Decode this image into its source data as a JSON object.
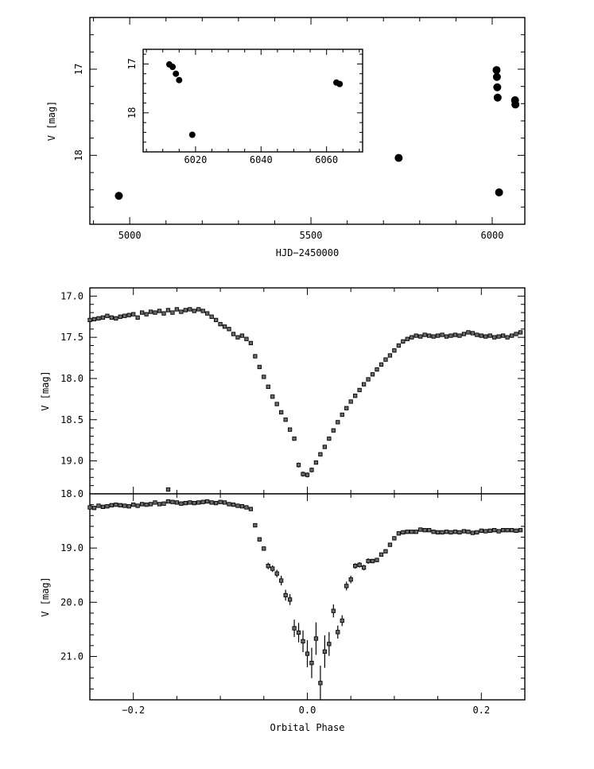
{
  "chart_data": [
    {
      "type": "scatter",
      "id": "top",
      "xlabel": "HJD−2450000",
      "ylabel": "V [mag]",
      "xlim": [
        4890,
        6090
      ],
      "ylim": [
        18.8,
        16.4
      ],
      "xticks": [
        5000,
        5500,
        6000
      ],
      "xminor_step": 100,
      "yticks": [
        17,
        18
      ],
      "yminor_step": 0.2,
      "inverted_y": true,
      "points": [
        {
          "x": 4970,
          "y": 18.47
        },
        {
          "x": 5742,
          "y": 18.03
        },
        {
          "x": 6012,
          "y": 17.01
        },
        {
          "x": 6013,
          "y": 17.09
        },
        {
          "x": 6014,
          "y": 17.21
        },
        {
          "x": 6015,
          "y": 17.33
        },
        {
          "x": 6019,
          "y": 18.43
        },
        {
          "x": 6063,
          "y": 17.36
        },
        {
          "x": 6064,
          "y": 17.41
        }
      ]
    },
    {
      "type": "scatter",
      "id": "inset",
      "xlim": [
        6004,
        6071
      ],
      "ylim": [
        18.8,
        16.7
      ],
      "xticks": [
        6020,
        6040,
        6060
      ],
      "xminor_step": 5,
      "yticks": [
        17,
        18
      ],
      "yminor_step": 0.2,
      "inverted_y": true,
      "points": [
        {
          "x": 6012,
          "y": 17.01
        },
        {
          "x": 6013,
          "y": 17.06
        },
        {
          "x": 6014,
          "y": 17.2
        },
        {
          "x": 6015,
          "y": 17.33
        },
        {
          "x": 6019,
          "y": 18.45
        },
        {
          "x": 6063,
          "y": 17.38
        },
        {
          "x": 6064,
          "y": 17.41
        }
      ]
    },
    {
      "type": "scatter",
      "id": "middle",
      "ylabel": "V [mag]",
      "xlim": [
        -0.25,
        0.25
      ],
      "ylim": [
        19.4,
        16.9
      ],
      "xticks": [
        -0.2,
        0,
        0.2
      ],
      "xminor_step": 0.05,
      "yticks": [
        17.0,
        17.5,
        18.0,
        18.5,
        19.0
      ],
      "yticklabels": [
        "17.0",
        "17.5",
        "18.0",
        "18.5",
        "19.0"
      ],
      "yminor_step": 0.1,
      "inverted_y": true,
      "x": [
        -0.25,
        -0.245,
        -0.24,
        -0.235,
        -0.23,
        -0.225,
        -0.22,
        -0.215,
        -0.21,
        -0.205,
        -0.2,
        -0.195,
        -0.19,
        -0.185,
        -0.18,
        -0.175,
        -0.17,
        -0.165,
        -0.16,
        -0.155,
        -0.15,
        -0.145,
        -0.14,
        -0.135,
        -0.13,
        -0.125,
        -0.12,
        -0.115,
        -0.11,
        -0.105,
        -0.1,
        -0.095,
        -0.09,
        -0.085,
        -0.08,
        -0.075,
        -0.07,
        -0.065,
        -0.06,
        -0.055,
        -0.05,
        -0.045,
        -0.04,
        -0.035,
        -0.03,
        -0.025,
        -0.02,
        -0.015,
        -0.01,
        -0.005,
        0,
        0.005,
        0.01,
        0.015,
        0.02,
        0.025,
        0.03,
        0.035,
        0.04,
        0.045,
        0.05,
        0.055,
        0.06,
        0.065,
        0.07,
        0.075,
        0.08,
        0.085,
        0.09,
        0.095,
        0.1,
        0.105,
        0.11,
        0.115,
        0.12,
        0.125,
        0.13,
        0.135,
        0.14,
        0.145,
        0.15,
        0.155,
        0.16,
        0.165,
        0.17,
        0.175,
        0.18,
        0.185,
        0.19,
        0.195,
        0.2,
        0.205,
        0.21,
        0.215,
        0.22,
        0.225,
        0.23,
        0.235,
        0.24,
        0.245
      ],
      "y": [
        17.29,
        17.28,
        17.27,
        17.26,
        17.24,
        17.26,
        17.27,
        17.25,
        17.24,
        17.23,
        17.22,
        17.26,
        17.2,
        17.22,
        17.19,
        17.2,
        17.18,
        17.21,
        17.17,
        17.2,
        17.16,
        17.19,
        17.17,
        17.16,
        17.18,
        17.16,
        17.18,
        17.21,
        17.25,
        17.29,
        17.34,
        17.37,
        17.4,
        17.46,
        17.5,
        17.48,
        17.52,
        17.57,
        17.73,
        17.86,
        17.98,
        18.1,
        18.22,
        18.31,
        18.41,
        18.5,
        18.62,
        18.73,
        19.05,
        19.16,
        19.17,
        19.11,
        19.02,
        18.92,
        18.83,
        18.73,
        18.63,
        18.53,
        18.44,
        18.36,
        18.28,
        18.21,
        18.14,
        18.07,
        18.01,
        17.95,
        17.89,
        17.83,
        17.77,
        17.72,
        17.66,
        17.6,
        17.55,
        17.52,
        17.5,
        17.48,
        17.49,
        17.47,
        17.48,
        17.49,
        17.48,
        17.47,
        17.49,
        17.48,
        17.47,
        17.48,
        17.46,
        17.44,
        17.45,
        17.47,
        17.48,
        17.49,
        17.48,
        17.5,
        17.49,
        17.48,
        17.5,
        17.48,
        17.46,
        17.44
      ],
      "yerr": [
        0.01,
        0.01,
        0.01,
        0.01,
        0.01,
        0.01,
        0.01,
        0.01,
        0.01,
        0.01,
        0.01,
        0.01,
        0.01,
        0.01,
        0.01,
        0.01,
        0.01,
        0.01,
        0.01,
        0.01,
        0.01,
        0.01,
        0.01,
        0.01,
        0.01,
        0.01,
        0.01,
        0.01,
        0.01,
        0.01,
        0.01,
        0.01,
        0.01,
        0.01,
        0.01,
        0.01,
        0.01,
        0.01,
        0.01,
        0.01,
        0.01,
        0.01,
        0.01,
        0.01,
        0.01,
        0.01,
        0.01,
        0.01,
        0.03,
        0.03,
        0.03,
        0.03,
        0.01,
        0.01,
        0.01,
        0.01,
        0.01,
        0.01,
        0.01,
        0.01,
        0.01,
        0.01,
        0.01,
        0.01,
        0.01,
        0.01,
        0.01,
        0.01,
        0.01,
        0.01,
        0.01,
        0.01,
        0.01,
        0.01,
        0.01,
        0.01,
        0.01,
        0.01,
        0.01,
        0.01,
        0.01,
        0.01,
        0.01,
        0.01,
        0.01,
        0.01,
        0.01,
        0.01,
        0.01,
        0.01,
        0.01,
        0.01,
        0.01,
        0.01,
        0.01,
        0.01,
        0.01,
        0.01,
        0.01,
        0.01
      ]
    },
    {
      "type": "scatter",
      "id": "bottom",
      "xlabel": "Orbital Phase",
      "ylabel": "V [mag]",
      "xlim": [
        -0.25,
        0.25
      ],
      "ylim": [
        21.8,
        18.0
      ],
      "xticks": [
        -0.2,
        0,
        0.2
      ],
      "xticklabels": [
        "−0.2",
        "0.0",
        "0.2"
      ],
      "xminor_step": 0.05,
      "yticks": [
        18.0,
        19.0,
        20.0,
        21.0
      ],
      "yticklabels": [
        "18.0",
        "19.0",
        "20.0",
        "21.0"
      ],
      "yminor_step": 0.2,
      "inverted_y": true,
      "x": [
        -0.25,
        -0.245,
        -0.24,
        -0.235,
        -0.23,
        -0.225,
        -0.22,
        -0.215,
        -0.21,
        -0.205,
        -0.2,
        -0.195,
        -0.19,
        -0.185,
        -0.18,
        -0.175,
        -0.17,
        -0.165,
        -0.16,
        -0.155,
        -0.15,
        -0.145,
        -0.14,
        -0.135,
        -0.13,
        -0.125,
        -0.12,
        -0.115,
        -0.11,
        -0.105,
        -0.1,
        -0.095,
        -0.09,
        -0.085,
        -0.08,
        -0.075,
        -0.07,
        -0.065,
        -0.06,
        -0.055,
        -0.05,
        -0.045,
        -0.04,
        -0.035,
        -0.03,
        -0.025,
        -0.02,
        -0.015,
        -0.01,
        -0.005,
        0,
        0.005,
        0.01,
        0.015,
        0.02,
        0.025,
        0.03,
        0.035,
        0.04,
        0.045,
        0.05,
        0.055,
        0.06,
        0.065,
        0.07,
        0.075,
        0.08,
        0.085,
        0.09,
        0.095,
        0.1,
        0.105,
        0.11,
        0.115,
        0.12,
        0.125,
        0.13,
        0.135,
        0.14,
        0.145,
        0.15,
        0.155,
        0.16,
        0.165,
        0.17,
        0.175,
        0.18,
        0.185,
        0.19,
        0.195,
        0.2,
        0.205,
        0.21,
        0.215,
        0.22,
        0.225,
        0.23,
        0.235,
        0.24,
        0.245,
        -0.16
      ],
      "y": [
        18.25,
        18.26,
        18.22,
        18.24,
        18.23,
        18.21,
        18.2,
        18.21,
        18.22,
        18.23,
        18.2,
        18.22,
        18.19,
        18.2,
        18.19,
        18.16,
        18.19,
        18.18,
        18.14,
        18.15,
        18.16,
        18.18,
        18.17,
        18.16,
        18.17,
        18.16,
        18.15,
        18.14,
        18.16,
        18.17,
        18.15,
        18.16,
        18.19,
        18.2,
        18.22,
        18.23,
        18.25,
        18.28,
        18.58,
        18.84,
        19.01,
        19.33,
        19.38,
        19.47,
        19.6,
        19.87,
        19.95,
        20.48,
        20.56,
        20.72,
        20.95,
        21.12,
        20.67,
        21.49,
        20.91,
        20.77,
        20.16,
        20.55,
        20.34,
        19.7,
        19.58,
        19.33,
        19.31,
        19.36,
        19.24,
        19.24,
        19.22,
        19.12,
        19.06,
        18.94,
        18.82,
        18.73,
        18.71,
        18.7,
        18.7,
        18.7,
        18.66,
        18.67,
        18.67,
        18.7,
        18.71,
        18.71,
        18.7,
        18.71,
        18.7,
        18.71,
        18.69,
        18.7,
        18.72,
        18.71,
        18.68,
        18.69,
        18.68,
        18.67,
        18.69,
        18.67,
        18.67,
        18.67,
        18.68,
        18.67,
        17.92
      ],
      "yerr": [
        0.02,
        0.02,
        0.02,
        0.02,
        0.02,
        0.02,
        0.02,
        0.02,
        0.02,
        0.02,
        0.02,
        0.02,
        0.02,
        0.02,
        0.02,
        0.02,
        0.02,
        0.02,
        0.02,
        0.02,
        0.02,
        0.02,
        0.02,
        0.02,
        0.02,
        0.02,
        0.02,
        0.02,
        0.02,
        0.02,
        0.02,
        0.02,
        0.02,
        0.02,
        0.02,
        0.02,
        0.02,
        0.02,
        0.02,
        0.02,
        0.04,
        0.06,
        0.06,
        0.07,
        0.09,
        0.1,
        0.1,
        0.16,
        0.18,
        0.2,
        0.25,
        0.28,
        0.3,
        0.32,
        0.3,
        0.22,
        0.12,
        0.12,
        0.1,
        0.08,
        0.07,
        0.05,
        0.05,
        0.05,
        0.05,
        0.04,
        0.04,
        0.03,
        0.03,
        0.02,
        0.02,
        0.02,
        0.02,
        0.02,
        0.02,
        0.02,
        0.02,
        0.02,
        0.02,
        0.02,
        0.02,
        0.02,
        0.02,
        0.02,
        0.02,
        0.02,
        0.02,
        0.02,
        0.02,
        0.02,
        0.02,
        0.02,
        0.02,
        0.02,
        0.02,
        0.02,
        0.02,
        0.02,
        0.02,
        0.02,
        0.02
      ]
    }
  ]
}
